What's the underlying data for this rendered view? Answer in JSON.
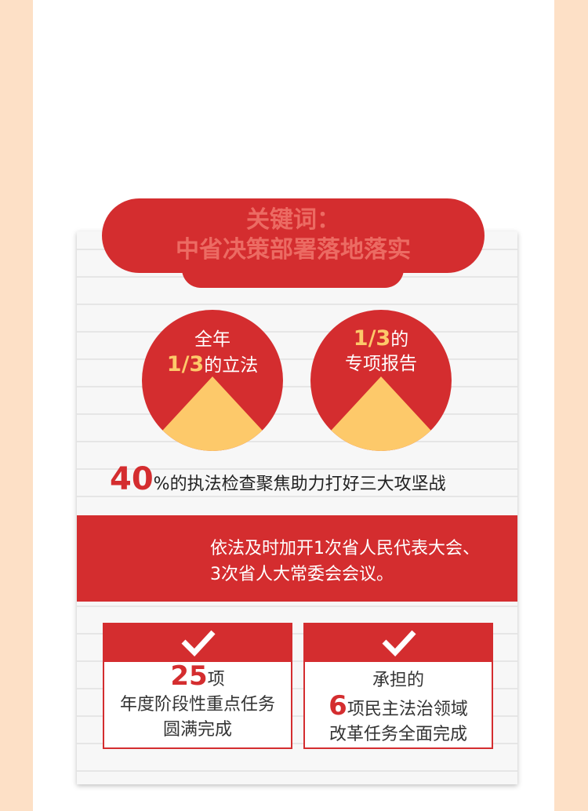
{
  "header": {
    "line1": "关键词：",
    "line2": "中省决策部署落地落实"
  },
  "circles": [
    {
      "top": "全年",
      "fraction": "1/3",
      "rest": "的立法"
    },
    {
      "fraction": "1/3",
      "rest": "的",
      "bottom": "专项报告"
    }
  ],
  "stat": {
    "number": "40",
    "text": "%的执法检查聚焦助力打好三大攻坚战"
  },
  "banner": {
    "line1": "依法及时加开1次省人民代表大会、",
    "line2": "3次省人大常委会会议。"
  },
  "boxes": [
    {
      "number": "25",
      "unit": "项",
      "line2": "年度阶段性重点任务",
      "line3": "圆满完成"
    },
    {
      "line1": "承担的",
      "number": "6",
      "unit": "项民主法治领域",
      "line3": "改革任务全面完成"
    }
  ]
}
